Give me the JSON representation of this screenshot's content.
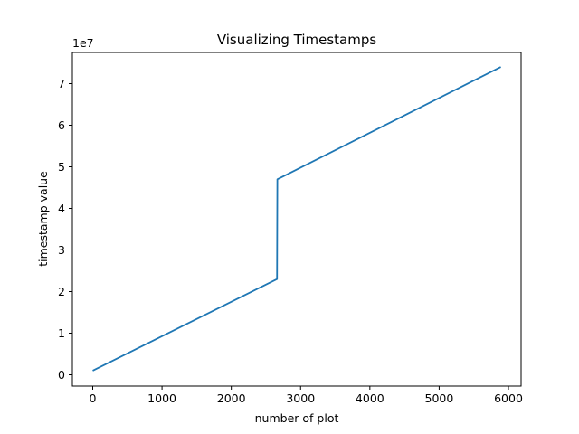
{
  "chart_data": {
    "type": "line",
    "title": "Visualizing Timestamps",
    "xlabel": "number of plot",
    "ylabel": "timestamp value",
    "y_offset_label": "1e7",
    "xlim": [
      -300,
      6200
    ],
    "ylim": [
      -2.5,
      7.8
    ],
    "y_scale_factor": 10000000,
    "x_ticks": [
      0,
      1000,
      2000,
      3000,
      4000,
      5000,
      6000
    ],
    "y_ticks": [
      0,
      1,
      2,
      3,
      4,
      5,
      6,
      7
    ],
    "grid": false,
    "series": [
      {
        "color": "#1f77b4",
        "x": [
          0,
          2660,
          2665,
          5890
        ],
        "y": [
          0.1,
          2.3,
          4.7,
          7.4
        ]
      }
    ]
  }
}
